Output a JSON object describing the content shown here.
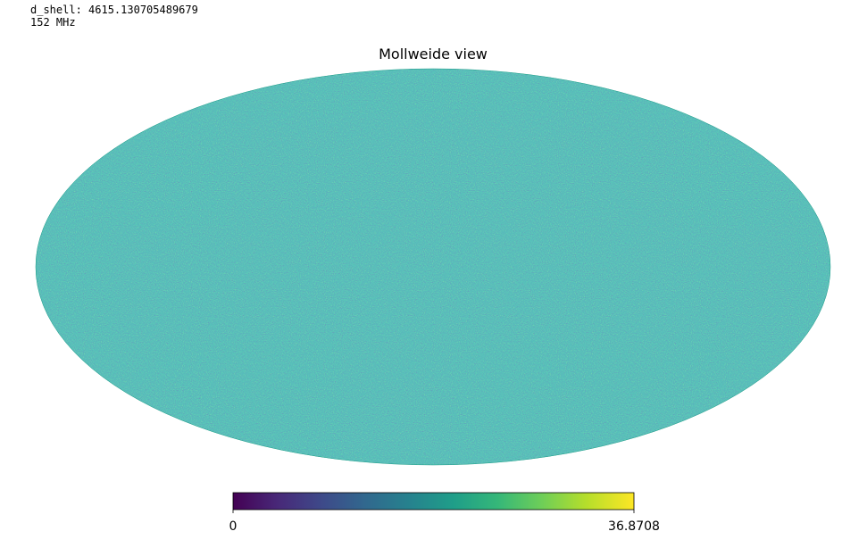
{
  "output": {
    "line1": "d_shell: 4615.130705489679",
    "line2": "152 MHz"
  },
  "chart_data": {
    "type": "heatmap",
    "projection": "mollweide",
    "title": "Mollweide view",
    "colormap": "viridis",
    "colorbar": {
      "min": 0,
      "max": 36.8708,
      "min_label": "0",
      "max_label": "36.8708",
      "placement": "bottom"
    },
    "dominant_value_fraction": 0.55,
    "noise": "random-gaussian-field"
  },
  "colors": {
    "viridis": [
      "#440154",
      "#482878",
      "#3e4989",
      "#31688e",
      "#26828e",
      "#1f9e89",
      "#35b779",
      "#6ece58",
      "#b5de2b",
      "#fde725"
    ]
  }
}
